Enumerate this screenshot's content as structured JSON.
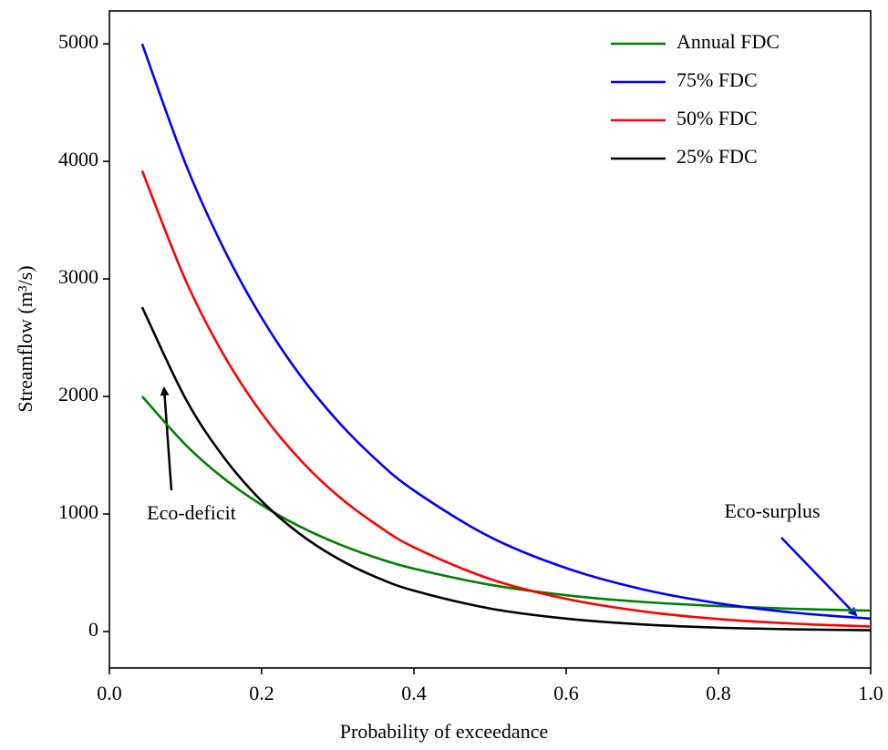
{
  "chart_data": {
    "type": "line",
    "x_label": "Probability of exceedance",
    "y_label": "Streamflow (m³/s)",
    "xlim": [
      0,
      1
    ],
    "ylim": [
      -310,
      5280
    ],
    "xticks": [
      {
        "value": 0,
        "label": "0.0"
      },
      {
        "value": 0.2,
        "label": "0.2"
      },
      {
        "value": 0.4,
        "label": "0.4"
      },
      {
        "value": 0.6,
        "label": "0.6"
      },
      {
        "value": 0.8,
        "label": "0.8"
      },
      {
        "value": 1,
        "label": "1.0"
      }
    ],
    "yticks": [
      0,
      1000,
      2000,
      3000,
      4000,
      5000
    ],
    "x": [
      0.043,
      0.1,
      0.15,
      0.2,
      0.25,
      0.3,
      0.35,
      0.4,
      0.5,
      0.6,
      0.7,
      0.8,
      0.9,
      1.0
    ],
    "series": [
      {
        "name": "Annual FDC",
        "color": "#008000",
        "values": [
          2000,
          1589,
          1304,
          1077,
          894,
          748,
          629,
          535,
          398,
          309,
          252,
          217,
          193,
          178
        ]
      },
      {
        "name": "75% FDC",
        "color": "#0000ff",
        "values": [
          5000,
          3980,
          3260,
          2670,
          2185,
          1790,
          1465,
          1200,
          805,
          540,
          360,
          240,
          160,
          110
        ]
      },
      {
        "name": "50% FDC",
        "color": "#ff0000",
        "values": [
          3920,
          2990,
          2356,
          1858,
          1466,
          1156,
          913,
          717,
          447,
          278,
          172,
          106,
          67,
          43
        ]
      },
      {
        "name": "25% FDC",
        "color": "#000000",
        "values": [
          2760,
          1982,
          1485,
          1110,
          831,
          621,
          464,
          348,
          196,
          110,
          61,
          33,
          19,
          11
        ]
      }
    ],
    "annotations": [
      "Eco-deficit",
      "Eco-surplus"
    ],
    "legend": "top-right"
  }
}
